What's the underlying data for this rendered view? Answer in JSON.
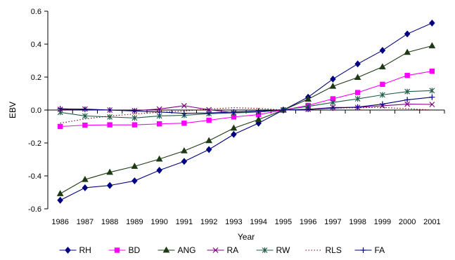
{
  "chart_data": {
    "type": "line",
    "title": "",
    "xlabel": "Year",
    "ylabel": "EBV",
    "ylim": [
      -0.6,
      0.6
    ],
    "yticks": [
      -0.6,
      -0.4,
      -0.2,
      0.0,
      0.2,
      0.4,
      0.6
    ],
    "ytick_labels": [
      "-0.6",
      "-0.4",
      "-0.2",
      "0.0",
      "0.2",
      "0.4",
      "0.6"
    ],
    "grid": false,
    "legend_position": "bottom",
    "categories": [
      "1986",
      "1987",
      "1988",
      "1989",
      "1990",
      "1991",
      "1992",
      "1993",
      "1994",
      "1995",
      "1996",
      "1997",
      "1998",
      "1999",
      "2000",
      "2001"
    ],
    "series": [
      {
        "name": "RH",
        "color": "#000080",
        "marker": "diamond",
        "line": "solid",
        "values": [
          -0.548,
          -0.472,
          -0.458,
          -0.43,
          -0.366,
          -0.312,
          -0.24,
          -0.148,
          -0.08,
          0.0,
          0.078,
          0.188,
          0.28,
          0.362,
          0.462,
          0.528
        ]
      },
      {
        "name": "BD",
        "color": "#ff00ff",
        "marker": "square",
        "line": "solid",
        "values": [
          -0.1,
          -0.092,
          -0.09,
          -0.09,
          -0.084,
          -0.08,
          -0.062,
          -0.042,
          -0.028,
          0.0,
          0.028,
          0.068,
          0.106,
          0.156,
          0.21,
          0.236
        ]
      },
      {
        "name": "ANG",
        "color": "#1e3a14",
        "marker": "triangle",
        "line": "solid",
        "values": [
          -0.508,
          -0.422,
          -0.378,
          -0.342,
          -0.298,
          -0.248,
          -0.186,
          -0.11,
          -0.058,
          0.0,
          0.066,
          0.144,
          0.198,
          0.262,
          0.35,
          0.39
        ]
      },
      {
        "name": "RA",
        "color": "#800080",
        "marker": "x",
        "line": "solid",
        "values": [
          0.004,
          0.006,
          0.0,
          -0.004,
          0.006,
          0.026,
          0.002,
          -0.016,
          -0.012,
          0.0,
          0.004,
          0.016,
          0.016,
          0.026,
          0.036,
          0.034
        ]
      },
      {
        "name": "RW",
        "color": "#1f5c4a",
        "marker": "star",
        "line": "solid",
        "values": [
          -0.014,
          -0.036,
          -0.042,
          -0.048,
          -0.036,
          -0.032,
          -0.022,
          -0.018,
          -0.012,
          0.0,
          0.022,
          0.046,
          0.068,
          0.092,
          0.112,
          0.118
        ]
      },
      {
        "name": "RLS",
        "color": "#800000",
        "marker": "none",
        "line": "dotted",
        "values": [
          -0.08,
          -0.054,
          -0.036,
          -0.024,
          -0.014,
          -0.006,
          0.006,
          0.014,
          0.01,
          0.0,
          0.004,
          0.012,
          0.014,
          0.016,
          0.008,
          0.0
        ]
      },
      {
        "name": "FA",
        "color": "#000080",
        "marker": "plus",
        "line": "solid",
        "values": [
          0.008,
          0.004,
          0.0,
          -0.006,
          -0.012,
          -0.02,
          -0.018,
          -0.012,
          -0.006,
          0.0,
          0.004,
          0.012,
          0.018,
          0.036,
          0.062,
          0.078
        ]
      }
    ]
  }
}
